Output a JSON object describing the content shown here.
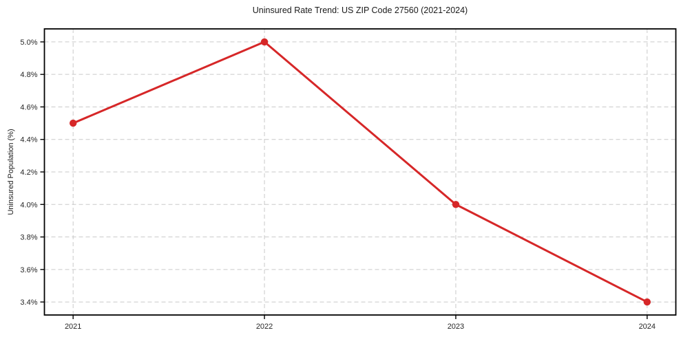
{
  "chart_data": {
    "type": "line",
    "title": "Uninsured Rate Trend: US ZIP Code 27560 (2021-2024)",
    "xlabel": "",
    "ylabel": "Uninsured Population (%)",
    "x": [
      2021,
      2022,
      2023,
      2024
    ],
    "x_tick_labels": [
      "2021",
      "2022",
      "2023",
      "2024"
    ],
    "y_ticks": [
      3.4,
      3.6,
      3.8,
      4.0,
      4.2,
      4.4,
      4.6,
      4.8,
      5.0
    ],
    "y_tick_labels": [
      "3.4%",
      "3.6%",
      "3.8%",
      "4.0%",
      "4.2%",
      "4.4%",
      "4.6%",
      "4.8%",
      "5.0%"
    ],
    "series": [
      {
        "name": "Uninsured Population (%)",
        "values": [
          4.5,
          5.0,
          4.0,
          3.4
        ]
      }
    ],
    "xlim": [
      2020.85,
      2024.15
    ],
    "ylim": [
      3.32,
      5.08
    ],
    "grid": true,
    "grid_style": "dashed",
    "legend": false,
    "marker": "circle",
    "colors": {
      "line": "#d62728",
      "marker": "#d62728",
      "grid": "#c9c9c9",
      "axis": "#000000",
      "text": "#262626",
      "background": "#ffffff"
    }
  }
}
